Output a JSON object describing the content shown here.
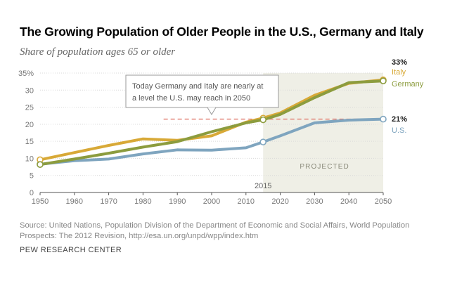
{
  "chart_data": {
    "type": "line",
    "title": "The Growing Population of Older People in the U.S., Germany and Italy",
    "subtitle": "Share of population ages 65 or older",
    "x": [
      1950,
      1960,
      1970,
      1980,
      1990,
      2000,
      2010,
      2015,
      2020,
      2030,
      2040,
      2050
    ],
    "xlim": [
      1950,
      2050
    ],
    "ylim": [
      0,
      35
    ],
    "x_ticks": [
      "1950",
      "1960",
      "1970",
      "1980",
      "1990",
      "2000",
      "2010",
      "2020",
      "2030",
      "2040",
      "2050"
    ],
    "y_ticks": [
      "0",
      "5",
      "10",
      "15",
      "20",
      "25",
      "30",
      "35%"
    ],
    "grid": true,
    "series": [
      {
        "name": "Germany",
        "color": "#8c9c3e",
        "values": [
          8.2,
          9.8,
          11.5,
          13.3,
          14.9,
          17.8,
          20.4,
          21.3,
          22.9,
          27.8,
          32.2,
          32.7
        ]
      },
      {
        "name": "Italy",
        "color": "#d8a937",
        "values": [
          9.6,
          11.7,
          13.8,
          15.7,
          15.3,
          16.6,
          20.6,
          21.8,
          23.3,
          28.5,
          32.0,
          33.0
        ]
      },
      {
        "name": "U.S.",
        "color": "#7fa5bf",
        "values": [
          8.3,
          9.3,
          9.8,
          11.3,
          12.5,
          12.4,
          13.1,
          14.8,
          16.6,
          20.4,
          21.2,
          21.5
        ]
      }
    ],
    "end_labels": {
      "pct_top": "33%",
      "italy": "Italy",
      "germany": "Germany",
      "pct_us": "21%",
      "us": "U.S."
    },
    "projected_label": "PROJECTED",
    "projection_start_label": "2015",
    "projection_start": 2015,
    "reference_value": 21.5,
    "annotation": [
      "Today Germany and Italy are nearly at",
      "a level the U.S. may reach in 2050"
    ],
    "source": "Source: United Nations, Population Division of the Department of Economic and Social Affairs, World Population Prospects: The 2012 Revision, http://esa.un.org/unpd/wpp/index.htm",
    "brand": "PEW RESEARCH CENTER",
    "colors": {
      "projected_band": "#efefe6",
      "reference_line": "#e07a6e",
      "grid": "#d9d9d9",
      "axis": "#555555"
    }
  }
}
